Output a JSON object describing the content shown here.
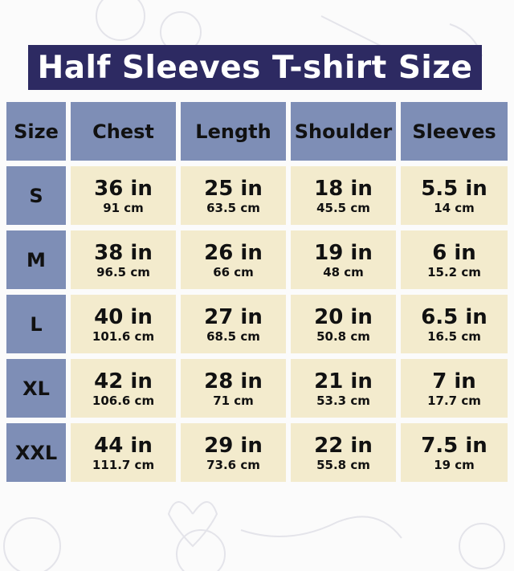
{
  "title": "Half Sleeves T-shirt Size",
  "headers": [
    "Size",
    "Chest",
    "Length",
    "Shoulder",
    "Sleeves"
  ],
  "rows": [
    {
      "size": "S",
      "values": [
        {
          "in": "36 in",
          "cm": "91 cm"
        },
        {
          "in": "25 in",
          "cm": "63.5 cm"
        },
        {
          "in": "18 in",
          "cm": "45.5 cm"
        },
        {
          "in": "5.5 in",
          "cm": "14 cm"
        }
      ]
    },
    {
      "size": "M",
      "values": [
        {
          "in": "38 in",
          "cm": "96.5 cm"
        },
        {
          "in": "26 in",
          "cm": "66 cm"
        },
        {
          "in": "19 in",
          "cm": "48 cm"
        },
        {
          "in": "6 in",
          "cm": "15.2 cm"
        }
      ]
    },
    {
      "size": "L",
      "values": [
        {
          "in": "40 in",
          "cm": "101.6 cm"
        },
        {
          "in": "27 in",
          "cm": "68.5 cm"
        },
        {
          "in": "20 in",
          "cm": "50.8 cm"
        },
        {
          "in": "6.5 in",
          "cm": "16.5 cm"
        }
      ]
    },
    {
      "size": "XL",
      "values": [
        {
          "in": "42 in",
          "cm": "106.6 cm"
        },
        {
          "in": "28 in",
          "cm": "71 cm"
        },
        {
          "in": "21 in",
          "cm": "53.3 cm"
        },
        {
          "in": "7 in",
          "cm": "17.7 cm"
        }
      ]
    },
    {
      "size": "XXL",
      "values": [
        {
          "in": "44 in",
          "cm": "111.7 cm"
        },
        {
          "in": "29 in",
          "cm": "73.6 cm"
        },
        {
          "in": "22 in",
          "cm": "55.8 cm"
        },
        {
          "in": "7.5 in",
          "cm": "19 cm"
        }
      ]
    }
  ],
  "colors": {
    "title_bg": "#2d2a62",
    "header_bg": "#7e8eb6",
    "cell_bg": "#f3ebcd"
  }
}
